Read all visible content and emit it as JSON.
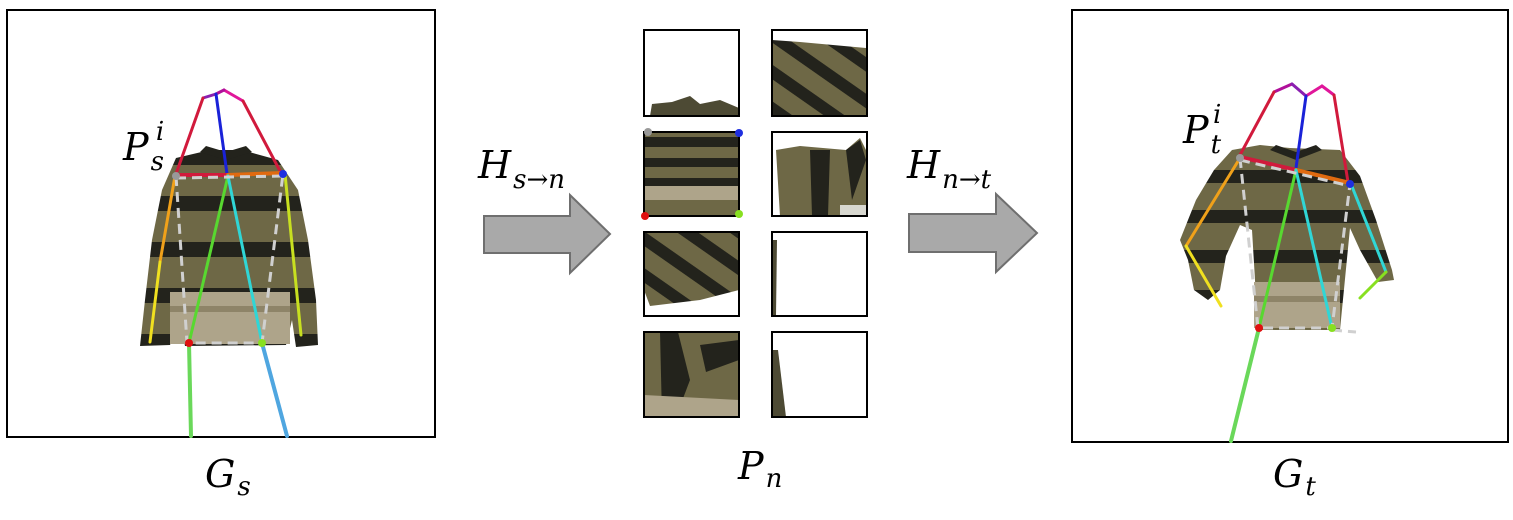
{
  "panels": {
    "source": {
      "caption_main": "G",
      "caption_sub": "s",
      "point_main": "P",
      "point_sub": "s",
      "point_sup": "i"
    },
    "normalized": {
      "caption_main": "P",
      "caption_sub": "n"
    },
    "target": {
      "caption_main": "G",
      "caption_sub": "t",
      "point_main": "P",
      "point_sub": "t",
      "point_sup": "i"
    }
  },
  "transforms": [
    {
      "main": "H",
      "sub": "s→n"
    },
    {
      "main": "H",
      "sub": "n→t"
    }
  ],
  "colors": {
    "stripe_dark": "#23231c",
    "stripe_olive": "#6e6846",
    "stripe_beige": "#aea48a",
    "arrow_fill": "#a9a9a9",
    "arrow_stroke": "#6f6f6f",
    "neck_left": "#e0169a",
    "head_left": "#8a1fb0",
    "spine": "#1a22d8",
    "shoulder_left": "#d11a3c",
    "shoulder_right": "#e06a10",
    "arm_left_upper": "#f0a11a",
    "arm_left_lower": "#f0e020",
    "arm_right": "#c8e020",
    "torso_green": "#58d830",
    "torso_cyan": "#30d6d6",
    "leg_green": "#6ad85a",
    "leg_blue": "#4fa6e0",
    "corner_gray": "#999999",
    "corner_blue": "#1f2fe0",
    "corner_red": "#e01010",
    "corner_green": "#88e020"
  }
}
